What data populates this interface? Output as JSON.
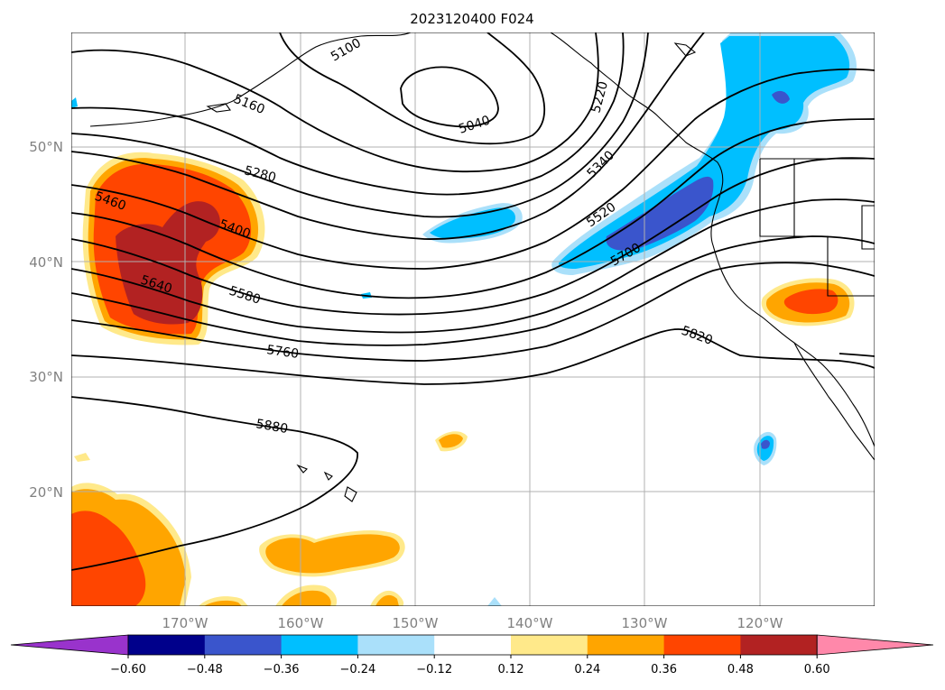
{
  "figure": {
    "title": "2023120400 F024"
  },
  "map": {
    "lat_labels": [
      "50°N",
      "40°N",
      "30°N",
      "20°N"
    ],
    "lon_labels": [
      "170°W",
      "160°W",
      "150°W",
      "140°W",
      "130°W",
      "120°W"
    ],
    "contour_labels": [
      "5040",
      "5100",
      "5160",
      "5220",
      "5280",
      "5340",
      "5400",
      "5460",
      "5520",
      "5580",
      "5640",
      "5700",
      "5760",
      "5820",
      "5880"
    ]
  },
  "colorbar": {
    "ticks": [
      "−0.60",
      "−0.48",
      "−0.36",
      "−0.24",
      "−0.12",
      "0.12",
      "0.24",
      "0.36",
      "0.48",
      "0.60"
    ],
    "colors": [
      "#9933cc",
      "#00008b",
      "#3a55cc",
      "#00bfff",
      "#aae0fa",
      "#ffffff",
      "#ffe98a",
      "#ffa500",
      "#ff4500",
      "#b22222",
      "#ff88aa"
    ]
  }
}
